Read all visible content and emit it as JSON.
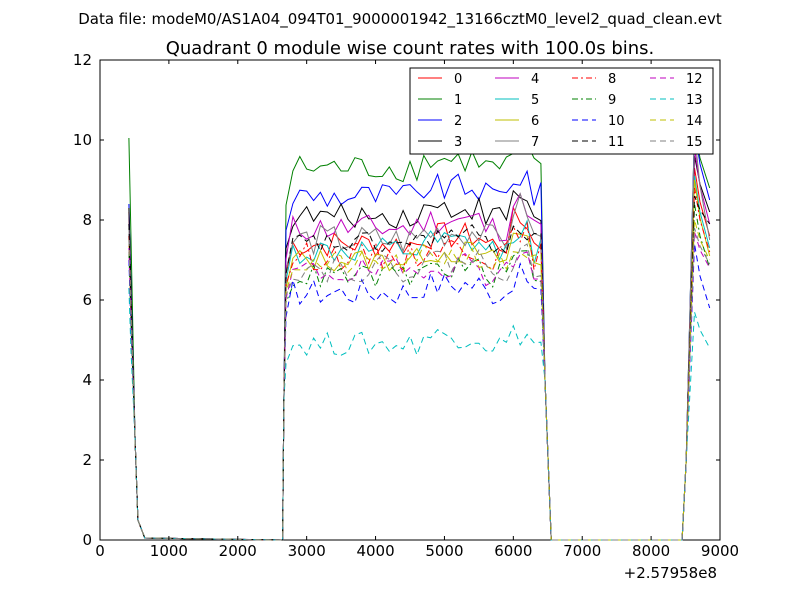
{
  "chart_data": {
    "type": "line",
    "suptitle": "Data file: modeM0/AS1A04_094T01_9000001942_13166cztM0_level2_quad_clean.evt",
    "title": "Quadrant 0 module wise count rates with 100.0s bins.",
    "xlabel": "",
    "ylabel": "",
    "x_offset_label": "+2.57958e8",
    "xlim": [
      0,
      9000
    ],
    "ylim": [
      0,
      12
    ],
    "xticks": [
      0,
      1000,
      2000,
      3000,
      4000,
      5000,
      6000,
      7000,
      8000,
      9000
    ],
    "yticks": [
      0,
      2,
      4,
      6,
      8,
      10,
      12
    ],
    "xtick_labels": [
      "0",
      "1000",
      "2000",
      "3000",
      "4000",
      "5000",
      "6000",
      "7000",
      "8000",
      "9000"
    ],
    "ytick_labels": [
      "0",
      "2",
      "4",
      "6",
      "8",
      "10",
      "12"
    ],
    "legend_position": "top-right",
    "series": [
      {
        "name": "0",
        "color": "#ff0000",
        "dash": "solid",
        "level": 7.4,
        "start": 8.2,
        "peak": 9.3,
        "end": 7.6,
        "spread": 0.35
      },
      {
        "name": "1",
        "color": "#008000",
        "dash": "solid",
        "level": 9.3,
        "start": 10.05,
        "peak": 10.3,
        "end": 8.8,
        "spread": 0.35
      },
      {
        "name": "2",
        "color": "#0000ff",
        "dash": "solid",
        "level": 8.6,
        "start": 8.4,
        "peak": 10.3,
        "end": 8.5,
        "spread": 0.35
      },
      {
        "name": "3",
        "color": "#000000",
        "dash": "solid",
        "level": 8.1,
        "start": 8.3,
        "peak": 9.6,
        "end": 8.2,
        "spread": 0.3
      },
      {
        "name": "4",
        "color": "#bf00bf",
        "dash": "solid",
        "level": 7.8,
        "start": 7.9,
        "peak": 9.8,
        "end": 7.9,
        "spread": 0.35
      },
      {
        "name": "5",
        "color": "#00bfbf",
        "dash": "solid",
        "level": 7.2,
        "start": 7.6,
        "peak": 9.1,
        "end": 7.3,
        "spread": 0.35
      },
      {
        "name": "6",
        "color": "#bfbf00",
        "dash": "solid",
        "level": 7.0,
        "start": 7.4,
        "peak": 9.0,
        "end": 7.1,
        "spread": 0.3
      },
      {
        "name": "7",
        "color": "#808080",
        "dash": "solid",
        "level": 7.5,
        "start": 7.8,
        "peak": 10.2,
        "end": 7.5,
        "spread": 0.4
      },
      {
        "name": "8",
        "color": "#ff0000",
        "dash": "dashdot",
        "level": 7.1,
        "start": 7.6,
        "peak": 8.8,
        "end": 7.2,
        "spread": 0.35
      },
      {
        "name": "9",
        "color": "#008000",
        "dash": "dashdot",
        "level": 6.6,
        "start": 7.2,
        "peak": 8.4,
        "end": 6.8,
        "spread": 0.3
      },
      {
        "name": "10",
        "color": "#0000ff",
        "dash": "dashed",
        "level": 6.2,
        "start": 7.0,
        "peak": 7.4,
        "end": 5.8,
        "spread": 0.35
      },
      {
        "name": "11",
        "color": "#000000",
        "dash": "dashed",
        "level": 7.4,
        "start": 7.9,
        "peak": 8.6,
        "end": 7.9,
        "spread": 0.3
      },
      {
        "name": "12",
        "color": "#bf00bf",
        "dash": "dashed",
        "level": 6.7,
        "start": 7.3,
        "peak": 7.7,
        "end": 6.8,
        "spread": 0.35
      },
      {
        "name": "13",
        "color": "#00bfbf",
        "dash": "dashed",
        "level": 4.9,
        "start": 6.3,
        "peak": 5.7,
        "end": 4.8,
        "spread": 0.3
      },
      {
        "name": "14",
        "color": "#bfbf00",
        "dash": "dashed",
        "level": 6.9,
        "start": 7.5,
        "peak": 8.0,
        "end": 7.0,
        "spread": 0.3
      },
      {
        "name": "15",
        "color": "#808080",
        "dash": "dashed",
        "level": 6.8,
        "start": 7.5,
        "peak": 7.8,
        "end": 6.9,
        "spread": 0.35
      }
    ],
    "segments": {
      "first_on": [
        450,
        550
      ],
      "off_1": [
        650,
        2650
      ],
      "second_on": [
        2700,
        6400
      ],
      "off_2": [
        6550,
        8450
      ],
      "third_on": [
        8550,
        8850
      ]
    }
  }
}
